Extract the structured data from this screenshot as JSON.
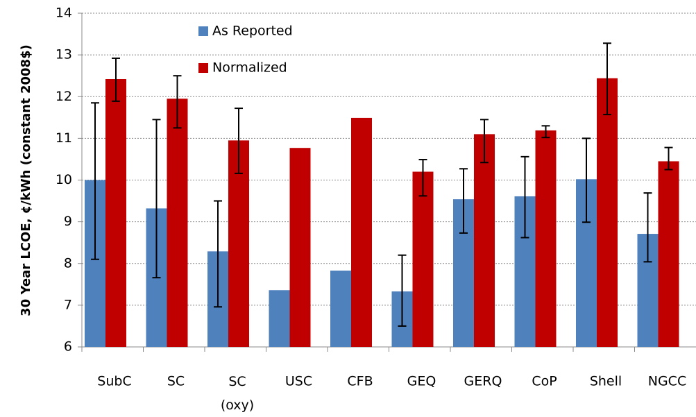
{
  "chart_data": {
    "type": "bar",
    "y_label": "30 Year LCOE, ¢/kWh (constant  2008$)",
    "categories": [
      "SubC",
      "SC",
      "SC\n(oxy)",
      "USC",
      "CFB",
      "GEQ",
      "GERQ",
      "CoP",
      "Shell",
      "NGCC"
    ],
    "series": [
      {
        "name": "As Reported",
        "color": "#4f81bd",
        "values": [
          10.0,
          9.32,
          8.29,
          7.36,
          7.83,
          7.33,
          9.54,
          9.61,
          10.02,
          8.71
        ],
        "error_low": [
          8.1,
          7.66,
          6.96,
          null,
          null,
          6.5,
          8.73,
          8.62,
          8.99,
          8.04
        ],
        "error_high": [
          11.85,
          11.45,
          9.5,
          null,
          null,
          8.2,
          10.27,
          10.56,
          11.0,
          9.69
        ]
      },
      {
        "name": "Normalized",
        "color": "#c00000",
        "values": [
          12.42,
          11.95,
          10.95,
          10.77,
          11.49,
          10.2,
          11.1,
          11.19,
          12.44,
          10.45
        ],
        "error_low": [
          11.89,
          11.25,
          10.16,
          null,
          null,
          9.62,
          10.42,
          11.02,
          11.57,
          10.25
        ],
        "error_high": [
          12.92,
          12.5,
          11.72,
          null,
          null,
          10.49,
          11.45,
          11.3,
          13.28,
          10.78
        ]
      }
    ],
    "ylim": [
      6,
      14
    ],
    "yticks": [
      6,
      7,
      8,
      9,
      10,
      11,
      12,
      13,
      14
    ],
    "grid": true,
    "legend": "top-left"
  }
}
